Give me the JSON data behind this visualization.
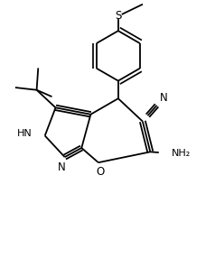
{
  "bg_color": "#ffffff",
  "line_color": "#000000",
  "lw": 1.3,
  "figsize": [
    2.38,
    2.86
  ],
  "dpi": 100,
  "xlim": [
    -3.5,
    3.5
  ],
  "ylim": [
    -3.8,
    4.5
  ]
}
